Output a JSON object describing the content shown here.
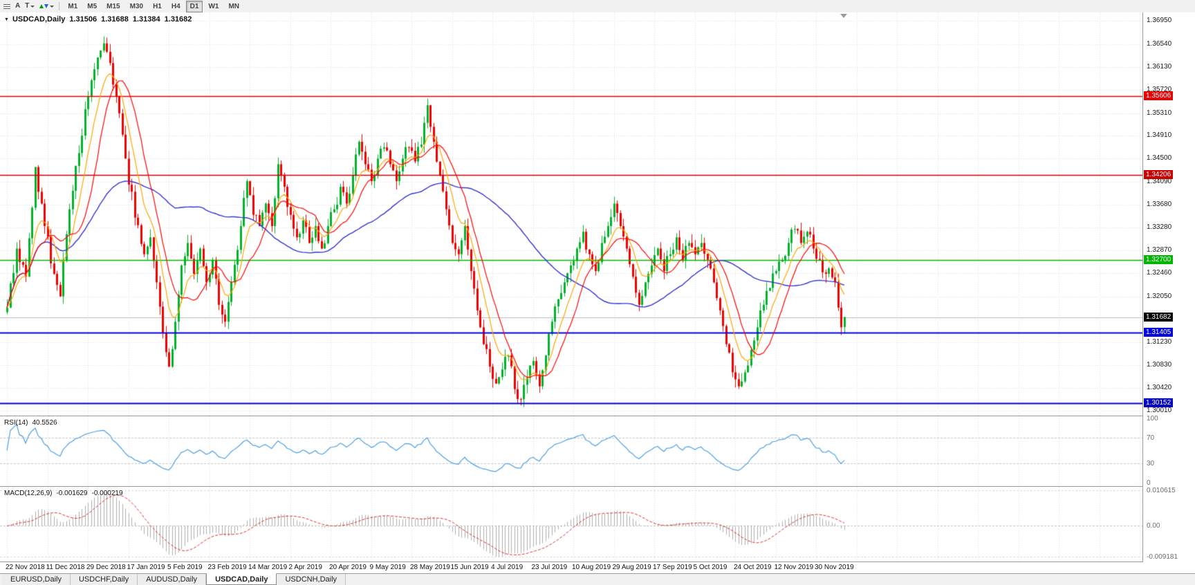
{
  "toolbar": {
    "menu_icon": "list-icon",
    "font_button": "A",
    "text_button": "T",
    "arrows_button_icon": "up-down-arrows-icon",
    "timeframes": [
      "M1",
      "M5",
      "M15",
      "M30",
      "H1",
      "H4",
      "D1",
      "W1",
      "MN"
    ],
    "active_timeframe": "D1"
  },
  "chart_header": {
    "collapse_icon": "triangle-down-icon",
    "symbol": "USDCAD,Daily",
    "open": "1.31506",
    "high": "1.31688",
    "low": "1.31384",
    "close": "1.31682"
  },
  "price_axis": {
    "ticks": [
      "1.36950",
      "1.36540",
      "1.36130",
      "1.35720",
      "1.35310",
      "1.34910",
      "1.34500",
      "1.34090",
      "1.33680",
      "1.33280",
      "1.32870",
      "1.32460",
      "1.32050",
      "1.31230",
      "1.30830",
      "1.30420",
      "1.30010"
    ],
    "hidden_tick": "1.31640",
    "current_price_label": {
      "value": "1.31682",
      "bg": "#000000",
      "fg": "#ffffff"
    }
  },
  "horizontal_lines": [
    {
      "label": "1.35606",
      "price": 1.35606,
      "color": "#e60000",
      "width": 1.4
    },
    {
      "label": "1.34206",
      "price": 1.34206,
      "color": "#c80000",
      "width": 1.4
    },
    {
      "label": "1.32700",
      "price": 1.327,
      "color": "#00b400",
      "width": 1.6
    },
    {
      "label": "1.31405",
      "price": 1.31405,
      "color": "#0000e0",
      "width": 1.8
    },
    {
      "label": "1.30152",
      "price": 1.30152,
      "color": "#0000c0",
      "width": 1.8
    }
  ],
  "rsi_panel": {
    "title": "RSI(14)",
    "value": "40.5526",
    "axis_labels": [
      "100",
      "70",
      "30",
      "0"
    ],
    "level_lines": [
      70,
      30
    ],
    "line_color": "#4a9fe0"
  },
  "macd_panel": {
    "title": "MACD(12,26,9)",
    "value_main": "-0.001629",
    "value_signal": "-0.000219",
    "axis_labels": [
      "0.010615",
      "0.00",
      "-0.009181"
    ],
    "scale_max": 0.010615,
    "scale_min": -0.009181,
    "histogram_color": "#adadad",
    "signal_color": "#e03030"
  },
  "tabs": {
    "items": [
      "EURUSD,Daily",
      "USDCHF,Daily",
      "AUDUSD,Daily",
      "USDCAD,Daily",
      "USDCNH,Daily"
    ],
    "active_index": 3
  },
  "chart_data": {
    "type": "candlestick",
    "symbol": "USDCAD",
    "timeframe": "Daily",
    "num_candles": 270,
    "candles_per_x_label": 13,
    "x_labels": [
      "22 Nov 2018",
      "11 Dec 2018",
      "29 Dec 2018",
      "17 Jan 2019",
      "5 Feb 2019",
      "23 Feb 2019",
      "14 Mar 2019",
      "2 Apr 2019",
      "20 Apr 2019",
      "9 May 2019",
      "28 May 2019",
      "15 Jun 2019",
      "4 Jul 2019",
      "23 Jul 2019",
      "10 Aug 2019",
      "29 Aug 2019",
      "17 Sep 2019",
      "5 Oct 2019",
      "24 Oct 2019",
      "12 Nov 2019",
      "30 Nov 2019"
    ],
    "price_scale": {
      "top": 1.371,
      "bottom": 1.2993
    },
    "ohlc_last": {
      "open": 1.31506,
      "high": 1.31688,
      "low": 1.31384,
      "close": 1.31682
    },
    "up_color": "#00b22c",
    "down_color": "#f20000",
    "price_keypoints": [
      [
        0,
        1.3185
      ],
      [
        3,
        1.329
      ],
      [
        6,
        1.324
      ],
      [
        9,
        1.3435
      ],
      [
        12,
        1.333
      ],
      [
        15,
        1.3245
      ],
      [
        17,
        1.3205
      ],
      [
        20,
        1.336
      ],
      [
        23,
        1.346
      ],
      [
        26,
        1.356
      ],
      [
        29,
        1.363
      ],
      [
        31,
        1.3655
      ],
      [
        33,
        1.362
      ],
      [
        35,
        1.356
      ],
      [
        38,
        1.345
      ],
      [
        41,
        1.3345
      ],
      [
        44,
        1.328
      ],
      [
        46,
        1.331
      ],
      [
        48,
        1.323
      ],
      [
        50,
        1.314
      ],
      [
        52,
        1.308
      ],
      [
        54,
        1.316
      ],
      [
        56,
        1.326
      ],
      [
        58,
        1.33
      ],
      [
        60,
        1.3245
      ],
      [
        62,
        1.329
      ],
      [
        64,
        1.323
      ],
      [
        66,
        1.327
      ],
      [
        68,
        1.319
      ],
      [
        70,
        1.316
      ],
      [
        72,
        1.323
      ],
      [
        75,
        1.333
      ],
      [
        77,
        1.341
      ],
      [
        79,
        1.335
      ],
      [
        81,
        1.333
      ],
      [
        83,
        1.337
      ],
      [
        85,
        1.333
      ],
      [
        87,
        1.344
      ],
      [
        89,
        1.34
      ],
      [
        91,
        1.335
      ],
      [
        93,
        1.331
      ],
      [
        95,
        1.334
      ],
      [
        97,
        1.33
      ],
      [
        99,
        1.333
      ],
      [
        101,
        1.329
      ],
      [
        103,
        1.333
      ],
      [
        105,
        1.336
      ],
      [
        107,
        1.34
      ],
      [
        109,
        1.337
      ],
      [
        111,
        1.342
      ],
      [
        113,
        1.348
      ],
      [
        115,
        1.344
      ],
      [
        117,
        1.341
      ],
      [
        119,
        1.345
      ],
      [
        121,
        1.347
      ],
      [
        123,
        1.344
      ],
      [
        125,
        1.341
      ],
      [
        127,
        1.345
      ],
      [
        129,
        1.347
      ],
      [
        131,
        1.3445
      ],
      [
        133,
        1.3475
      ],
      [
        135,
        1.3545
      ],
      [
        137,
        1.348
      ],
      [
        139,
        1.342
      ],
      [
        141,
        1.336
      ],
      [
        143,
        1.33
      ],
      [
        145,
        1.328
      ],
      [
        147,
        1.333
      ],
      [
        149,
        1.325
      ],
      [
        151,
        1.318
      ],
      [
        153,
        1.312
      ],
      [
        155,
        1.308
      ],
      [
        157,
        1.305
      ],
      [
        159,
        1.3075
      ],
      [
        161,
        1.31
      ],
      [
        163,
        1.304
      ],
      [
        165,
        1.3022
      ],
      [
        167,
        1.306
      ],
      [
        169,
        1.309
      ],
      [
        171,
        1.3045
      ],
      [
        173,
        1.31
      ],
      [
        175,
        1.316
      ],
      [
        177,
        1.32
      ],
      [
        179,
        1.323
      ],
      [
        181,
        1.326
      ],
      [
        183,
        1.329
      ],
      [
        185,
        1.332
      ],
      [
        187,
        1.328
      ],
      [
        189,
        1.325
      ],
      [
        191,
        1.33
      ],
      [
        193,
        1.333
      ],
      [
        195,
        1.337
      ],
      [
        197,
        1.333
      ],
      [
        199,
        1.329
      ],
      [
        201,
        1.324
      ],
      [
        203,
        1.319
      ],
      [
        205,
        1.323
      ],
      [
        207,
        1.326
      ],
      [
        209,
        1.329
      ],
      [
        211,
        1.325
      ],
      [
        213,
        1.328
      ],
      [
        215,
        1.331
      ],
      [
        217,
        1.327
      ],
      [
        219,
        1.33
      ],
      [
        221,
        1.328
      ],
      [
        223,
        1.33
      ],
      [
        225,
        1.327
      ],
      [
        227,
        1.323
      ],
      [
        229,
        1.318
      ],
      [
        231,
        1.312
      ],
      [
        233,
        1.307
      ],
      [
        235,
        1.3045
      ],
      [
        237,
        1.307
      ],
      [
        239,
        1.311
      ],
      [
        241,
        1.315
      ],
      [
        243,
        1.319
      ],
      [
        245,
        1.322
      ],
      [
        247,
        1.325
      ],
      [
        249,
        1.327
      ],
      [
        251,
        1.33
      ],
      [
        253,
        1.3325
      ],
      [
        255,
        1.33
      ],
      [
        257,
        1.332
      ],
      [
        259,
        1.329
      ],
      [
        261,
        1.327
      ],
      [
        263,
        1.3245
      ],
      [
        264,
        1.3255
      ],
      [
        266,
        1.323
      ],
      [
        267,
        1.3185
      ],
      [
        268,
        1.315
      ],
      [
        269,
        1.31682
      ]
    ],
    "moving_averages": [
      {
        "name": "slow-ma",
        "period": 55,
        "method": "sma",
        "color": "#3333cc",
        "width": 1.4
      },
      {
        "name": "medium-ma",
        "period": 8,
        "method": "ema",
        "color": "#ffa500",
        "width": 1.2
      },
      {
        "name": "fast-ma",
        "period": 13,
        "method": "sma",
        "color": "#ff0000",
        "width": 1.2
      }
    ],
    "indicators": [
      {
        "type": "rsi",
        "period": 14,
        "current": 40.5526
      },
      {
        "type": "macd",
        "fast": 12,
        "slow": 26,
        "signal": 9,
        "current_main": -0.001629,
        "current_signal": -0.000219
      }
    ]
  }
}
